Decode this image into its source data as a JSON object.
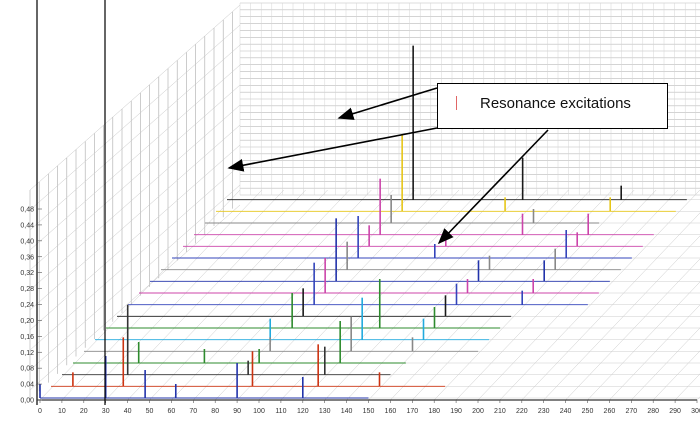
{
  "chart_data": {
    "type": "line",
    "title": "",
    "xlabel": "",
    "ylabel": "",
    "x_ticks": [
      0,
      10,
      20,
      30,
      40,
      50,
      60,
      70,
      80,
      90,
      100,
      110,
      120,
      130,
      140,
      150,
      160,
      170,
      180,
      190,
      200,
      210,
      220,
      230,
      240,
      250,
      260,
      270,
      280,
      290,
      300
    ],
    "y_ticks": [
      "0,00",
      "0,04",
      "0,08",
      "0,12",
      "0,16",
      "0,20",
      "0,24",
      "0,28",
      "0,32",
      "0,36",
      "0,40",
      "0,44",
      "0,48"
    ],
    "xlim": [
      0,
      300
    ],
    "ylim": [
      0,
      0.48
    ],
    "grid": true,
    "layout": "3d-waterfall",
    "series": [
      {
        "color": "#2233aa",
        "peaks": [
          [
            0,
            0.04
          ],
          [
            30,
            0.12
          ],
          [
            48,
            0.08
          ],
          [
            62,
            0.04
          ],
          [
            90,
            0.1
          ],
          [
            120,
            0.06
          ]
        ]
      },
      {
        "color": "#cc3311",
        "peaks": [
          [
            10,
            0.04
          ],
          [
            33,
            0.14
          ],
          [
            92,
            0.1
          ],
          [
            122,
            0.12
          ],
          [
            150,
            0.04
          ]
        ]
      },
      {
        "color": "#333333",
        "peaks": [
          [
            30,
            0.2
          ],
          [
            85,
            0.04
          ],
          [
            120,
            0.08
          ]
        ]
      },
      {
        "color": "#2e8b2e",
        "peaks": [
          [
            30,
            0.06
          ],
          [
            60,
            0.04
          ],
          [
            85,
            0.04
          ],
          [
            122,
            0.12
          ]
        ]
      },
      {
        "color": "#888888",
        "peaks": [
          [
            85,
            0.04
          ],
          [
            122,
            0.1
          ],
          [
            150,
            0.04
          ]
        ]
      },
      {
        "color": "#22aadd",
        "peaks": [
          [
            80,
            0.06
          ],
          [
            122,
            0.12
          ],
          [
            150,
            0.06
          ]
        ]
      },
      {
        "color": "#2e8b2e",
        "peaks": [
          [
            85,
            0.1
          ],
          [
            125,
            0.14
          ],
          [
            150,
            0.06
          ]
        ]
      },
      {
        "color": "#1a1a1a",
        "peaks": [
          [
            85,
            0.08
          ],
          [
            150,
            0.06
          ]
        ]
      },
      {
        "color": "#3344bb",
        "peaks": [
          [
            85,
            0.12
          ],
          [
            150,
            0.06
          ],
          [
            180,
            0.04
          ]
        ]
      },
      {
        "color": "#cc44aa",
        "peaks": [
          [
            85,
            0.1
          ],
          [
            150,
            0.04
          ],
          [
            180,
            0.04
          ]
        ]
      },
      {
        "color": "#2233aa",
        "peaks": [
          [
            85,
            0.18
          ],
          [
            150,
            0.06
          ],
          [
            180,
            0.06
          ]
        ]
      },
      {
        "color": "#888888",
        "peaks": [
          [
            85,
            0.08
          ],
          [
            150,
            0.04
          ],
          [
            180,
            0.06
          ]
        ]
      },
      {
        "color": "#3344bb",
        "peaks": [
          [
            85,
            0.12
          ],
          [
            120,
            0.04
          ],
          [
            180,
            0.08
          ]
        ]
      },
      {
        "color": "#cc44aa",
        "peaks": [
          [
            85,
            0.06
          ],
          [
            120,
            0.04
          ],
          [
            180,
            0.04
          ]
        ]
      },
      {
        "color": "#cc44aa",
        "peaks": [
          [
            85,
            0.16
          ],
          [
            150,
            0.06
          ],
          [
            180,
            0.06
          ]
        ]
      },
      {
        "color": "#888888",
        "peaks": [
          [
            85,
            0.08
          ],
          [
            150,
            0.04
          ]
        ]
      },
      {
        "color": "#e6c619",
        "peaks": [
          [
            85,
            0.22
          ],
          [
            132,
            0.04
          ],
          [
            180,
            0.04
          ]
        ]
      },
      {
        "color": "#1a1a1a",
        "peaks": [
          [
            85,
            0.44
          ],
          [
            135,
            0.12
          ],
          [
            180,
            0.04
          ]
        ]
      }
    ]
  },
  "annotation": {
    "text": "Resonance excitations"
  }
}
